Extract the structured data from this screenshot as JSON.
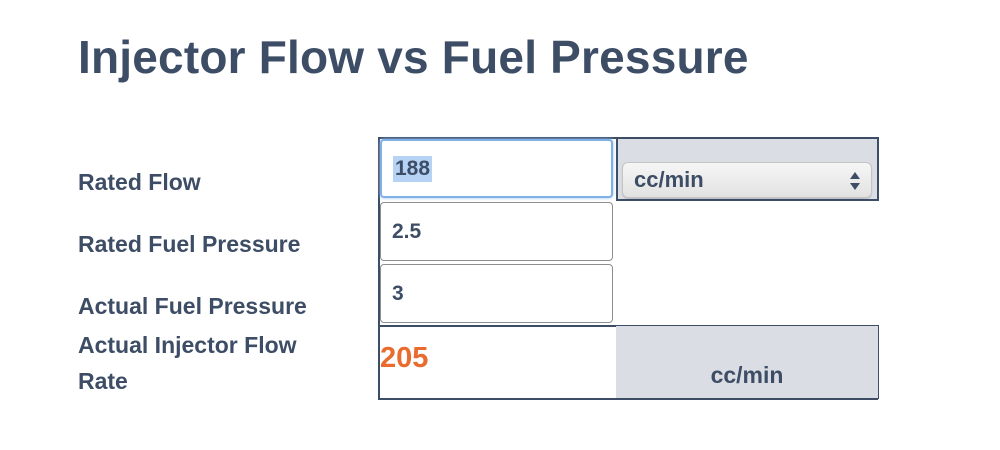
{
  "title": "Injector Flow vs Fuel Pressure",
  "labels": {
    "rated_flow": "Rated Flow",
    "rated_fuel_pressure": "Rated Fuel Pressure",
    "actual_fuel_pressure": "Actual Fuel Pressure",
    "actual_injector_flow_line1": "Actual Injector Flow",
    "actual_injector_flow_line2": "Rate"
  },
  "inputs": {
    "rated_flow": "188",
    "rated_fuel_pressure": "2.5",
    "actual_fuel_pressure": "3"
  },
  "unit_select": {
    "selected": "cc/min"
  },
  "result": {
    "value": "205",
    "unit": "cc/min"
  },
  "colors": {
    "text": "#3d4d66",
    "result": "#ea6b2e",
    "cell_fill": "#dadde3",
    "border": "#3d4d66",
    "focus": "#7fb0e8",
    "selection": "#b6d3f6"
  }
}
